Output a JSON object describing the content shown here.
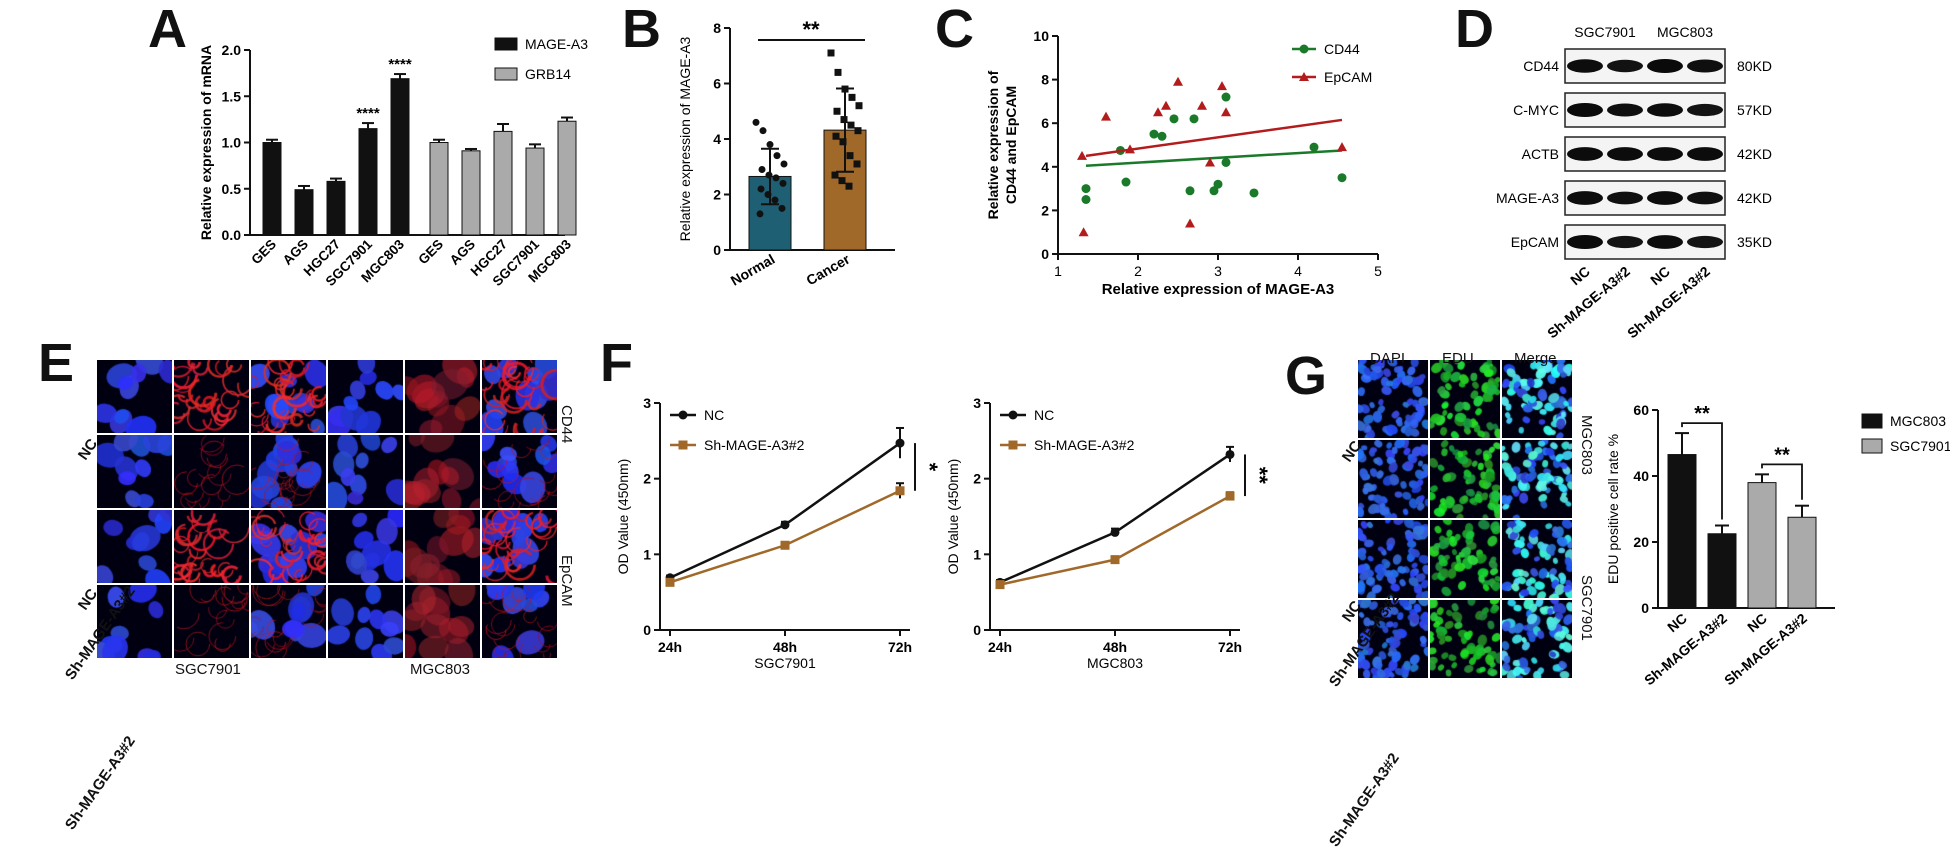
{
  "panels": {
    "A": "A",
    "B": "B",
    "C": "C",
    "D": "D",
    "E": "E",
    "F": "F",
    "G": "G"
  },
  "chart_data": [
    {
      "id": "A",
      "type": "bar",
      "ylabel": "Relative expression of mRNA",
      "ylim": [
        0,
        2.0
      ],
      "yticks": [
        "0.0",
        "0.5",
        "1.0",
        "1.5",
        "2.0"
      ],
      "groups": [
        {
          "name": "MAGE-A3",
          "color": "#111111",
          "categories": [
            "GES",
            "AGS",
            "HGC27",
            "SGC7901",
            "MGC803"
          ],
          "values": [
            1.0,
            0.49,
            0.58,
            1.15,
            1.69
          ],
          "errors": [
            0.03,
            0.04,
            0.03,
            0.06,
            0.05
          ],
          "annotations": [
            "",
            "",
            "",
            "****",
            "****"
          ]
        },
        {
          "name": "GRB14",
          "color": "#aaaaaa",
          "categories": [
            "GES",
            "AGS",
            "HGC27",
            "SGC7901",
            "MGC803"
          ],
          "values": [
            1.0,
            0.91,
            1.12,
            0.94,
            1.23
          ],
          "errors": [
            0.03,
            0.02,
            0.08,
            0.04,
            0.04
          ],
          "annotations": [
            "",
            "",
            "",
            "",
            ""
          ]
        }
      ],
      "legend": [
        "MAGE-A3",
        "GRB14"
      ]
    },
    {
      "id": "B",
      "type": "bar",
      "ylabel": "Relative expression of MAGE-A3",
      "ylim": [
        0,
        8
      ],
      "yticks": [
        "0",
        "2",
        "4",
        "6",
        "8"
      ],
      "categories": [
        "Normal",
        "Cancer"
      ],
      "values": [
        2.65,
        4.32
      ],
      "errors": [
        1.0,
        1.5
      ],
      "colors": [
        "#1f5f73",
        "#a0692a"
      ],
      "points": [
        [
          4.6,
          4.3,
          3.8,
          3.4,
          3.1,
          2.9,
          2.7,
          2.6,
          2.4,
          2.2,
          2.0,
          1.8,
          1.5,
          1.3
        ],
        [
          7.1,
          6.4,
          5.8,
          5.5,
          5.2,
          5.0,
          4.7,
          4.5,
          4.3,
          4.1,
          3.9,
          3.4,
          3.1,
          2.7,
          2.5,
          2.3
        ]
      ],
      "significance": "**"
    },
    {
      "id": "C",
      "type": "scatter",
      "xlabel": "Relative expression of MAGE-A3",
      "ylabel": "Relative expression of\nCD44 and EpCAM",
      "xlim": [
        1,
        5
      ],
      "ylim": [
        0,
        10
      ],
      "xticks": [
        "1",
        "2",
        "3",
        "4",
        "5"
      ],
      "yticks": [
        "0",
        "2",
        "4",
        "6",
        "8",
        "10"
      ],
      "series": [
        {
          "name": "CD44",
          "color": "#1a7a2a",
          "marker": "circle",
          "points": [
            [
              1.35,
              3.0
            ],
            [
              1.35,
              2.5
            ],
            [
              1.78,
              4.75
            ],
            [
              1.85,
              3.3
            ],
            [
              2.2,
              5.5
            ],
            [
              2.3,
              5.4
            ],
            [
              2.45,
              6.2
            ],
            [
              2.65,
              2.9
            ],
            [
              2.7,
              6.2
            ],
            [
              2.95,
              2.9
            ],
            [
              3.0,
              3.2
            ],
            [
              3.1,
              7.2
            ],
            [
              3.1,
              4.2
            ],
            [
              3.45,
              2.8
            ],
            [
              4.2,
              4.9
            ],
            [
              4.55,
              3.5
            ]
          ],
          "fit": [
            [
              1.35,
              4.05
            ],
            [
              4.55,
              4.75
            ]
          ]
        },
        {
          "name": "EpCAM",
          "color": "#b31c1c",
          "marker": "triangle",
          "points": [
            [
              1.3,
              4.5
            ],
            [
              1.32,
              1.0
            ],
            [
              1.6,
              6.3
            ],
            [
              1.9,
              4.8
            ],
            [
              2.25,
              6.5
            ],
            [
              2.35,
              6.8
            ],
            [
              2.5,
              7.9
            ],
            [
              2.65,
              1.4
            ],
            [
              2.8,
              6.8
            ],
            [
              2.9,
              4.2
            ],
            [
              3.05,
              7.7
            ],
            [
              3.1,
              6.5
            ],
            [
              4.55,
              4.9
            ]
          ],
          "fit": [
            [
              1.35,
              4.5
            ],
            [
              4.55,
              6.15
            ]
          ]
        }
      ],
      "legend": [
        "CD44",
        "EpCAM"
      ]
    },
    {
      "id": "F1",
      "type": "line",
      "xlabel": "SGC7901",
      "ylabel": "OD Value (450nm)",
      "categories": [
        "24h",
        "48h",
        "72h"
      ],
      "ylim": [
        0,
        3
      ],
      "yticks": [
        "0",
        "1",
        "2",
        "3"
      ],
      "series": [
        {
          "name": "NC",
          "color": "#111111",
          "marker": "circle",
          "values": [
            0.69,
            1.39,
            2.47
          ],
          "errors": [
            0.03,
            0.04,
            0.2
          ]
        },
        {
          "name": "Sh-MAGE-A3#2",
          "color": "#a0692a",
          "marker": "square",
          "values": [
            0.63,
            1.12,
            1.84
          ],
          "errors": [
            0.03,
            0.04,
            0.1
          ]
        }
      ],
      "significance": "*"
    },
    {
      "id": "F2",
      "type": "line",
      "xlabel": "MGC803",
      "ylabel": "OD Value (450nm)",
      "categories": [
        "24h",
        "48h",
        "72h"
      ],
      "ylim": [
        0,
        3
      ],
      "yticks": [
        "0",
        "1",
        "2",
        "3"
      ],
      "series": [
        {
          "name": "NC",
          "color": "#111111",
          "marker": "circle",
          "values": [
            0.63,
            1.29,
            2.32
          ],
          "errors": [
            0.03,
            0.05,
            0.1
          ]
        },
        {
          "name": "Sh-MAGE-A3#2",
          "color": "#a0692a",
          "marker": "square",
          "values": [
            0.6,
            0.93,
            1.77
          ],
          "errors": [
            0.03,
            0.03,
            0.05
          ]
        }
      ],
      "significance": "**"
    },
    {
      "id": "G",
      "type": "bar",
      "ylabel": "EDU positive cell rate %",
      "ylim": [
        0,
        60
      ],
      "yticks": [
        "0",
        "20",
        "40",
        "60"
      ],
      "categories": [
        "NC",
        "Sh-MAGE-A3#2",
        "NC",
        "Sh-MAGE-A3#2"
      ],
      "values": [
        46.5,
        22.5,
        38.0,
        27.5
      ],
      "errors": [
        6.5,
        2.5,
        2.5,
        3.5
      ],
      "colors": [
        "#111111",
        "#111111",
        "#aaaaaa",
        "#aaaaaa"
      ],
      "significance": [
        "**",
        "**"
      ],
      "legend": [
        {
          "name": "MGC803",
          "color": "#111111"
        },
        {
          "name": "SGC7901",
          "color": "#aaaaaa"
        }
      ]
    }
  ],
  "blot": {
    "columns": [
      "SGC7901",
      "MGC803"
    ],
    "lanes": [
      "NC",
      "Sh-MAGE-A3#2",
      "NC",
      "Sh-MAGE-A3#2"
    ],
    "rows": [
      {
        "protein": "CD44",
        "size": "80KD",
        "intensity": [
          0.9,
          0.75,
          1.0,
          0.85
        ]
      },
      {
        "protein": "C-MYC",
        "size": "57KD",
        "intensity": [
          1.0,
          0.85,
          0.9,
          0.7
        ]
      },
      {
        "protein": "ACTB",
        "size": "42KD",
        "intensity": [
          0.95,
          0.95,
          0.95,
          0.95
        ]
      },
      {
        "protein": "MAGE-A3",
        "size": "42KD",
        "intensity": [
          0.95,
          0.8,
          0.95,
          0.8
        ]
      },
      {
        "protein": "EpCAM",
        "size": "35KD",
        "intensity": [
          1.0,
          0.7,
          0.95,
          0.7
        ]
      }
    ]
  },
  "panel_E": {
    "rows": [
      "NC",
      "Sh-MAGE-A3#2",
      "NC",
      "Sh-MAGE-A3#2"
    ],
    "markers": [
      "CD44",
      "EpCAM"
    ],
    "cell_lines": [
      "SGC7901",
      "MGC803"
    ]
  },
  "panel_G_images": {
    "columns": [
      "DAPI",
      "EDU",
      "Merge"
    ],
    "rows": [
      "NC",
      "Sh-MAGE-A3#2",
      "NC",
      "Sh-MAGE-A3#2"
    ],
    "cell_lines": [
      "MGC803",
      "SGC7901"
    ]
  }
}
